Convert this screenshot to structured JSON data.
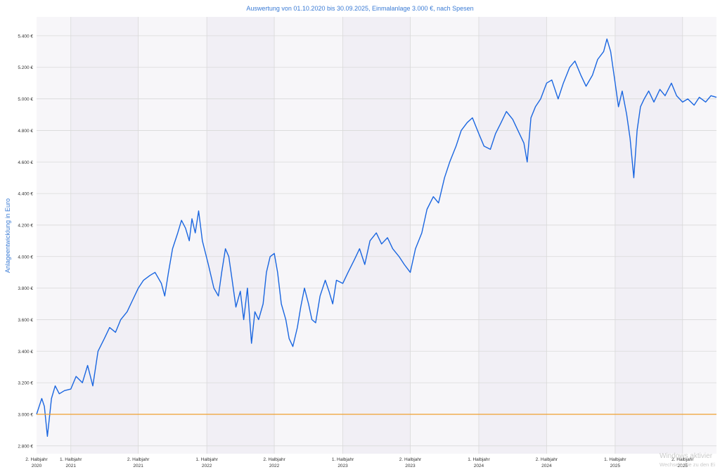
{
  "chart_data": {
    "type": "line",
    "title": "Auswertung von 01.10.2020 bis 30.09.2025, Einmalanlage 3.000 €, nach Spesen",
    "xlabel": "",
    "ylabel": "Anlageentwicklung  in Euro",
    "ylim": [
      2750,
      5520
    ],
    "xlim": [
      "2020-10-01",
      "2025-09-30"
    ],
    "y_ticks": [
      {
        "value": 2800,
        "label": "2.800 €"
      },
      {
        "value": 3000,
        "label": "3.000 €"
      },
      {
        "value": 3200,
        "label": "3.200 €"
      },
      {
        "value": 3400,
        "label": "3.400 €"
      },
      {
        "value": 3600,
        "label": "3.600 €"
      },
      {
        "value": 3800,
        "label": "3.800 €"
      },
      {
        "value": 4000,
        "label": "4.000 €"
      },
      {
        "value": 4200,
        "label": "4.200 €"
      },
      {
        "value": 4400,
        "label": "4.400 €"
      },
      {
        "value": 4600,
        "label": "4.600 €"
      },
      {
        "value": 4800,
        "label": "4.800 €"
      },
      {
        "value": 5000,
        "label": "5.000 €"
      },
      {
        "value": 5200,
        "label": "5.200 €"
      },
      {
        "value": 5400,
        "label": "5.400 €"
      }
    ],
    "x_ticks": [
      {
        "date": "2020-10-01",
        "line1": "2. Halbjahr",
        "line2": "2020"
      },
      {
        "date": "2021-01-01",
        "line1": "1. Halbjahr",
        "line2": "2021"
      },
      {
        "date": "2021-07-01",
        "line1": "2. Halbjahr",
        "line2": "2021"
      },
      {
        "date": "2022-01-01",
        "line1": "1. Halbjahr",
        "line2": "2022"
      },
      {
        "date": "2022-07-01",
        "line1": "2. Halbjahr",
        "line2": "2022"
      },
      {
        "date": "2023-01-01",
        "line1": "1. Halbjahr",
        "line2": "2023"
      },
      {
        "date": "2023-07-01",
        "line1": "2. Halbjahr",
        "line2": "2023"
      },
      {
        "date": "2024-01-01",
        "line1": "1. Halbjahr",
        "line2": "2024"
      },
      {
        "date": "2024-07-01",
        "line1": "2. Halbjahr",
        "line2": "2024"
      },
      {
        "date": "2025-01-01",
        "line1": "1. Halbjahr",
        "line2": "2025"
      },
      {
        "date": "2025-07-01",
        "line1": "2. Halbjahr",
        "line2": "2025"
      }
    ],
    "grid": true,
    "series": [
      {
        "color": "#1a66e0",
        "points": [
          [
            "2020-10-01",
            3000
          ],
          [
            "2020-10-08",
            3050
          ],
          [
            "2020-10-15",
            3100
          ],
          [
            "2020-10-22",
            3050
          ],
          [
            "2020-10-30",
            2860
          ],
          [
            "2020-11-10",
            3100
          ],
          [
            "2020-11-20",
            3180
          ],
          [
            "2020-12-01",
            3130
          ],
          [
            "2020-12-15",
            3150
          ],
          [
            "2021-01-01",
            3160
          ],
          [
            "2021-01-15",
            3240
          ],
          [
            "2021-02-01",
            3200
          ],
          [
            "2021-02-15",
            3310
          ],
          [
            "2021-03-01",
            3180
          ],
          [
            "2021-03-15",
            3400
          ],
          [
            "2021-04-01",
            3480
          ],
          [
            "2021-04-15",
            3550
          ],
          [
            "2021-05-01",
            3520
          ],
          [
            "2021-05-15",
            3600
          ],
          [
            "2021-06-01",
            3650
          ],
          [
            "2021-06-15",
            3720
          ],
          [
            "2021-07-01",
            3800
          ],
          [
            "2021-07-15",
            3850
          ],
          [
            "2021-08-01",
            3880
          ],
          [
            "2021-08-15",
            3900
          ],
          [
            "2021-09-01",
            3830
          ],
          [
            "2021-09-10",
            3750
          ],
          [
            "2021-09-20",
            3900
          ],
          [
            "2021-10-01",
            4050
          ],
          [
            "2021-10-15",
            4150
          ],
          [
            "2021-10-25",
            4230
          ],
          [
            "2021-11-05",
            4180
          ],
          [
            "2021-11-15",
            4100
          ],
          [
            "2021-11-22",
            4240
          ],
          [
            "2021-12-01",
            4150
          ],
          [
            "2021-12-10",
            4290
          ],
          [
            "2021-12-20",
            4100
          ],
          [
            "2022-01-05",
            3950
          ],
          [
            "2022-01-20",
            3800
          ],
          [
            "2022-02-01",
            3750
          ],
          [
            "2022-02-10",
            3900
          ],
          [
            "2022-02-20",
            4050
          ],
          [
            "2022-03-01",
            4000
          ],
          [
            "2022-03-10",
            3850
          ],
          [
            "2022-03-20",
            3680
          ],
          [
            "2022-04-01",
            3780
          ],
          [
            "2022-04-10",
            3600
          ],
          [
            "2022-04-20",
            3800
          ],
          [
            "2022-05-01",
            3450
          ],
          [
            "2022-05-10",
            3650
          ],
          [
            "2022-05-20",
            3600
          ],
          [
            "2022-06-01",
            3700
          ],
          [
            "2022-06-10",
            3900
          ],
          [
            "2022-06-20",
            4000
          ],
          [
            "2022-07-01",
            4020
          ],
          [
            "2022-07-10",
            3900
          ],
          [
            "2022-07-20",
            3700
          ],
          [
            "2022-08-01",
            3600
          ],
          [
            "2022-08-10",
            3480
          ],
          [
            "2022-08-20",
            3430
          ],
          [
            "2022-09-01",
            3550
          ],
          [
            "2022-09-10",
            3680
          ],
          [
            "2022-09-20",
            3800
          ],
          [
            "2022-10-01",
            3700
          ],
          [
            "2022-10-10",
            3600
          ],
          [
            "2022-10-20",
            3580
          ],
          [
            "2022-11-01",
            3750
          ],
          [
            "2022-11-15",
            3850
          ],
          [
            "2022-11-25",
            3780
          ],
          [
            "2022-12-05",
            3700
          ],
          [
            "2022-12-15",
            3850
          ],
          [
            "2023-01-01",
            3830
          ],
          [
            "2023-01-15",
            3900
          ],
          [
            "2023-02-01",
            3980
          ],
          [
            "2023-02-15",
            4050
          ],
          [
            "2023-03-01",
            3950
          ],
          [
            "2023-03-15",
            4100
          ],
          [
            "2023-04-01",
            4150
          ],
          [
            "2023-04-15",
            4080
          ],
          [
            "2023-05-01",
            4120
          ],
          [
            "2023-05-15",
            4050
          ],
          [
            "2023-06-01",
            4000
          ],
          [
            "2023-06-15",
            3950
          ],
          [
            "2023-07-01",
            3900
          ],
          [
            "2023-07-15",
            4050
          ],
          [
            "2023-08-01",
            4150
          ],
          [
            "2023-08-15",
            4300
          ],
          [
            "2023-09-01",
            4380
          ],
          [
            "2023-09-15",
            4340
          ],
          [
            "2023-10-01",
            4500
          ],
          [
            "2023-10-15",
            4600
          ],
          [
            "2023-11-01",
            4700
          ],
          [
            "2023-11-15",
            4800
          ],
          [
            "2023-12-01",
            4850
          ],
          [
            "2023-12-15",
            4880
          ],
          [
            "2024-01-01",
            4780
          ],
          [
            "2024-01-15",
            4700
          ],
          [
            "2024-02-01",
            4680
          ],
          [
            "2024-02-15",
            4780
          ],
          [
            "2024-03-01",
            4850
          ],
          [
            "2024-03-15",
            4920
          ],
          [
            "2024-04-01",
            4870
          ],
          [
            "2024-04-15",
            4800
          ],
          [
            "2024-05-01",
            4720
          ],
          [
            "2024-05-10",
            4600
          ],
          [
            "2024-05-20",
            4880
          ],
          [
            "2024-06-01",
            4950
          ],
          [
            "2024-06-15",
            5000
          ],
          [
            "2024-07-01",
            5100
          ],
          [
            "2024-07-15",
            5120
          ],
          [
            "2024-08-01",
            5000
          ],
          [
            "2024-08-15",
            5100
          ],
          [
            "2024-09-01",
            5200
          ],
          [
            "2024-09-15",
            5240
          ],
          [
            "2024-10-01",
            5150
          ],
          [
            "2024-10-15",
            5080
          ],
          [
            "2024-11-01",
            5150
          ],
          [
            "2024-11-15",
            5250
          ],
          [
            "2024-12-01",
            5300
          ],
          [
            "2024-12-10",
            5380
          ],
          [
            "2024-12-20",
            5300
          ],
          [
            "2025-01-01",
            5100
          ],
          [
            "2025-01-10",
            4950
          ],
          [
            "2025-01-20",
            5050
          ],
          [
            "2025-02-01",
            4900
          ],
          [
            "2025-02-10",
            4750
          ],
          [
            "2025-02-20",
            4500
          ],
          [
            "2025-03-01",
            4800
          ],
          [
            "2025-03-10",
            4950
          ],
          [
            "2025-03-20",
            5000
          ],
          [
            "2025-04-01",
            5050
          ],
          [
            "2025-04-15",
            4980
          ],
          [
            "2025-05-01",
            5060
          ],
          [
            "2025-05-15",
            5020
          ],
          [
            "2025-06-01",
            5100
          ],
          [
            "2025-06-15",
            5020
          ],
          [
            "2025-07-01",
            4980
          ],
          [
            "2025-07-15",
            5000
          ],
          [
            "2025-08-01",
            4960
          ],
          [
            "2025-08-15",
            5010
          ],
          [
            "2025-09-01",
            4980
          ],
          [
            "2025-09-15",
            5020
          ],
          [
            "2025-09-30",
            5010
          ]
        ]
      },
      {
        "color": "#f0a030",
        "points": [
          [
            "2020-10-01",
            3000
          ],
          [
            "2025-09-30",
            3000
          ]
        ]
      }
    ]
  },
  "watermark": {
    "line1": "Windows aktivier",
    "line2": "Wechseln Sie zu den Ei"
  }
}
